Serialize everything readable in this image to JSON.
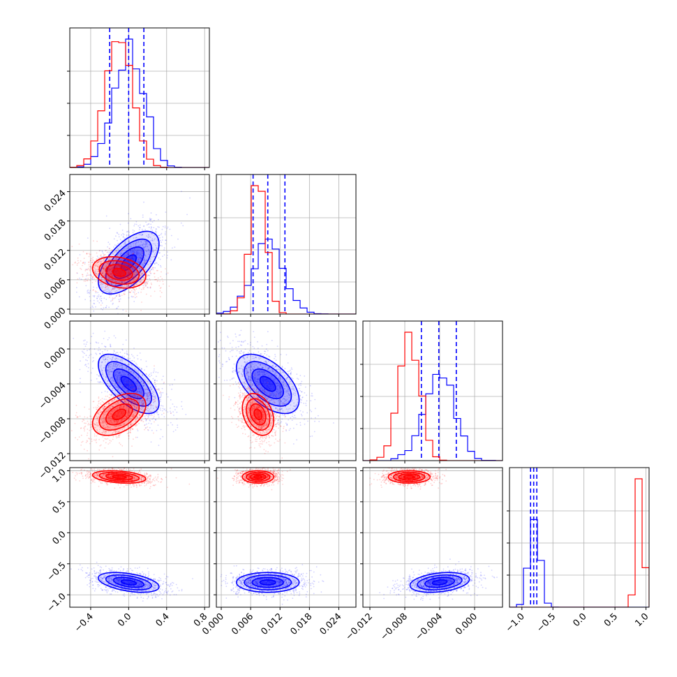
{
  "chart_data": {
    "type": "corner",
    "title": "",
    "grid": true,
    "colors": {
      "blue": "#0000ff",
      "red": "#ff0000",
      "axes": "#000000",
      "grid": "#b0b0b0"
    },
    "params": [
      {
        "range": [
          -0.62,
          0.85
        ],
        "ticks": [
          -0.4,
          0.0,
          0.4,
          0.8
        ],
        "tick_labels": [
          "−0.4",
          "0.0",
          "0.4",
          "0.8"
        ]
      },
      {
        "range": [
          -0.001,
          0.0275
        ],
        "ticks": [
          0.0,
          0.006,
          0.012,
          0.018,
          0.024
        ],
        "tick_labels": [
          "0.000",
          "0.006",
          "0.012",
          "0.018",
          "0.024"
        ]
      },
      {
        "range": [
          -0.0128,
          0.0032
        ],
        "ticks": [
          -0.012,
          -0.008,
          -0.004,
          0.0
        ],
        "tick_labels": [
          "−0.012",
          "−0.008",
          "−0.004",
          "0.000"
        ]
      },
      {
        "range": [
          -1.2,
          1.05
        ],
        "ticks": [
          -1.0,
          -0.5,
          0.0,
          0.5,
          1.0
        ],
        "tick_labels": [
          "−1.0",
          "−0.5",
          "0.0",
          "0.5",
          "1.0"
        ]
      }
    ],
    "series": [
      {
        "color": "blue",
        "means": [
          0.0,
          0.0095,
          -0.004,
          -0.8
        ],
        "sds": [
          0.16,
          0.0032,
          0.0017,
          0.08
        ],
        "quantiles": [
          [
            -0.2,
            0.0,
            0.16
          ],
          [
            0.0065,
            0.0095,
            0.013
          ],
          [
            -0.0061,
            -0.0041,
            -0.0021
          ],
          [
            -0.86,
            -0.81,
            -0.76
          ]
        ]
      },
      {
        "color": "red",
        "means": [
          -0.1,
          0.0075,
          -0.0075,
          0.9
        ],
        "sds": [
          0.14,
          0.0016,
          0.0012,
          0.05
        ],
        "quantiles": []
      }
    ],
    "correlations": {
      "blue": [
        [
          0,
          1,
          0.6
        ],
        [
          0,
          2,
          -0.65
        ],
        [
          1,
          2,
          -0.55
        ],
        [
          0,
          3,
          -0.45
        ],
        [
          2,
          3,
          0.3
        ]
      ],
      "red": [
        [
          0,
          1,
          -0.25
        ],
        [
          0,
          2,
          0.45
        ],
        [
          1,
          2,
          -0.3
        ],
        [
          0,
          3,
          -0.3
        ],
        [
          2,
          3,
          0.0
        ]
      ]
    }
  }
}
